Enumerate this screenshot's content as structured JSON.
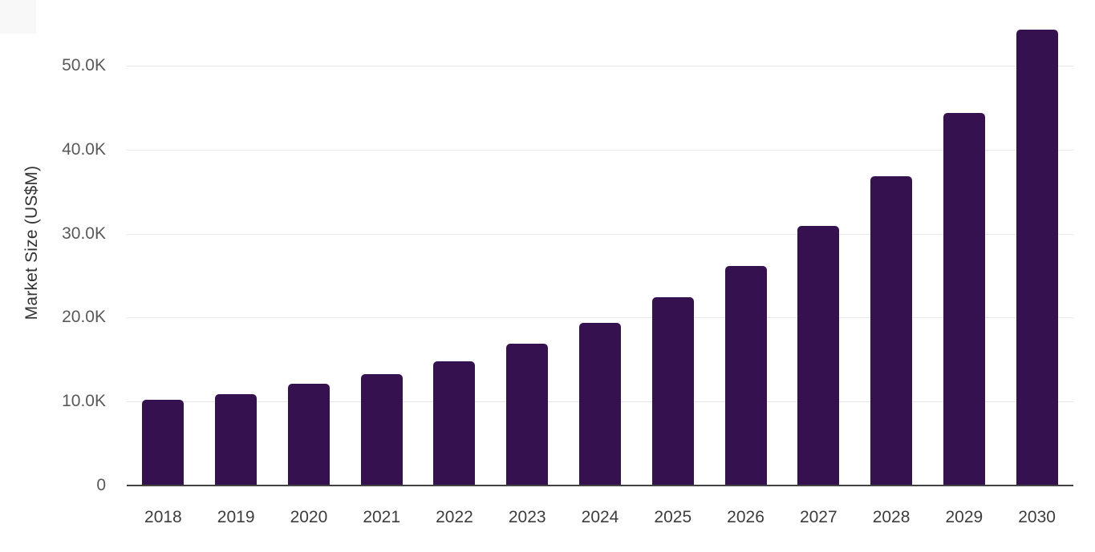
{
  "chart_data": {
    "type": "bar",
    "title": "",
    "xlabel": "",
    "ylabel": "Market Size (US$M)",
    "categories": [
      "2018",
      "2019",
      "2020",
      "2021",
      "2022",
      "2023",
      "2024",
      "2025",
      "2026",
      "2027",
      "2028",
      "2029",
      "2030"
    ],
    "values": [
      10200,
      10900,
      12100,
      13300,
      14800,
      16900,
      19400,
      22400,
      26100,
      30900,
      36800,
      44400,
      54300
    ],
    "series_name": "Market Size",
    "y_ticks": [
      {
        "value": 0,
        "label": "0"
      },
      {
        "value": 10000,
        "label": "10.0K"
      },
      {
        "value": 20000,
        "label": "20.0K"
      },
      {
        "value": 30000,
        "label": "30.0K"
      },
      {
        "value": 40000,
        "label": "40.0K"
      },
      {
        "value": 50000,
        "label": "50.0K"
      }
    ],
    "ylim": [
      0,
      50000
    ],
    "grid": true,
    "legend": false,
    "bar_color": "#35124f",
    "gridline_color": "#e7e7e7",
    "axis_line_color": "#424242",
    "ytick_color": "#595959",
    "xtick_color": "#3d3d3d"
  }
}
